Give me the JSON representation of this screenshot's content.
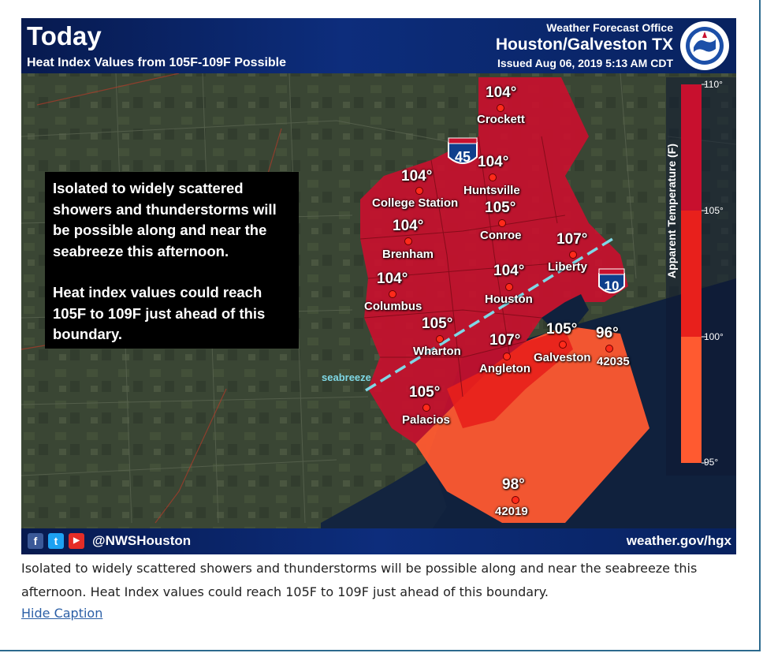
{
  "header": {
    "title": "Today",
    "subtitle": "Heat Index Values from 105F-109F Possible",
    "office_label": "Weather Forecast Office",
    "office_name": "Houston/Galveston TX",
    "issued": "Issued Aug 06, 2019 5:13 AM CDT"
  },
  "callout": {
    "paragraph1": "Isolated to widely scattered showers and thunderstorms will be possible along and near the seabreeze this afternoon.",
    "paragraph2": "Heat index values could reach 105F to 109F just ahead of this boundary."
  },
  "legend": {
    "axis_label": "Apparent Temperature (F)",
    "ticks": [
      "110°",
      "105°",
      "100°",
      "95°"
    ],
    "colors": [
      "#c8102e",
      "#e8201c",
      "#ff5a30"
    ]
  },
  "highways": {
    "i45": "45",
    "i10": "10"
  },
  "boundary_label": "seabreeze",
  "locations": [
    {
      "value": "104°",
      "name": "Crockett"
    },
    {
      "value": "104°",
      "name": "Huntsville"
    },
    {
      "value": "104°",
      "name": "College Station"
    },
    {
      "value": "105°",
      "name": "Conroe"
    },
    {
      "value": "104°",
      "name": "Brenham"
    },
    {
      "value": "107°",
      "name": "Liberty"
    },
    {
      "value": "104°",
      "name": "Houston"
    },
    {
      "value": "104°",
      "name": "Columbus"
    },
    {
      "value": "105°",
      "name": "Wharton"
    },
    {
      "value": "107°",
      "name": "Angleton"
    },
    {
      "value": "105°",
      "name": "Galveston"
    },
    {
      "value": "96°",
      "name": "42035"
    },
    {
      "value": "105°",
      "name": "Palacios"
    },
    {
      "value": "98°",
      "name": "42019"
    }
  ],
  "footer": {
    "handle": "@NWSHouston",
    "site": "weather.gov/hgx"
  },
  "caption": {
    "text": "Isolated to widely scattered showers and thunderstorms will be possible along and near the seabreeze this afternoon. Heat Index values could reach 105F to 109F just ahead of this boundary.",
    "toggle_label": "Hide Caption"
  }
}
